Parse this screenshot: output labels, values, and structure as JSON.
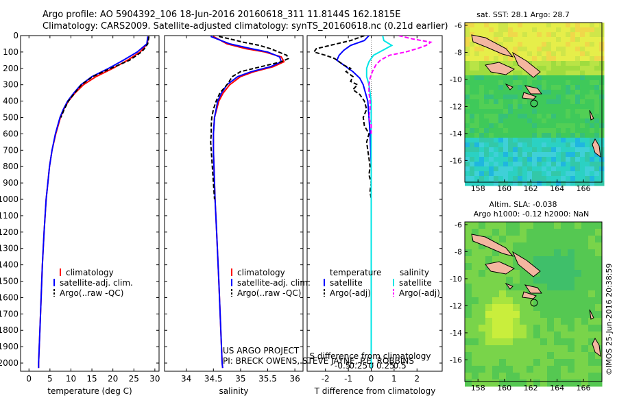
{
  "header": {
    "line1": "Argo profile: AO 5904392_106 18-Jun-2016 20160618_311 11.8144S 162.1815E",
    "line2": "Climatology: CARS2009. Satellite-adjusted climatology: synTS_20160618.nc (0.21d earlier)"
  },
  "colors": {
    "climatology": "#ff0000",
    "satellite": "#0000ff",
    "argo": "#000000",
    "satellite_salinity": "#00e5e5",
    "argo_salinity": "#ff00ff"
  },
  "chart_data": [
    {
      "id": "temperature",
      "type": "line",
      "xlabel": "temperature (deg C)",
      "xlim": [
        -2,
        31
      ],
      "xticks": [
        0,
        5,
        10,
        15,
        20,
        25,
        30
      ],
      "xtick_labels": [
        "0",
        "5",
        "10",
        "15",
        "20",
        "25",
        "30"
      ],
      "ylim": [
        2050,
        0
      ],
      "yticks": [
        0,
        100,
        200,
        300,
        400,
        500,
        600,
        700,
        800,
        900,
        1000,
        1100,
        1200,
        1300,
        1400,
        1500,
        1600,
        1700,
        1800,
        1900,
        2000
      ],
      "ytick_labels": [
        "0",
        "100",
        "200",
        "300",
        "400",
        "500",
        "600",
        "700",
        "800",
        "900",
        "1000",
        "1100",
        "1200",
        "1300",
        "1400",
        "1500",
        "1600",
        "1700",
        "1800",
        "1900",
        "2000"
      ],
      "legend": [
        "climatology",
        "satellite-adj. clim.",
        "Argo(..raw -QC)"
      ],
      "series": [
        {
          "name": "climatology",
          "color": "#ff0000",
          "dash": "",
          "depth": [
            5,
            50,
            100,
            150,
            200,
            250,
            300,
            350,
            400,
            450,
            500,
            600,
            700,
            800,
            900,
            1000,
            1200,
            1400,
            1600,
            1800,
            2000,
            2030
          ],
          "values": [
            28.4,
            28.2,
            26.5,
            23.5,
            20.0,
            16.0,
            13.0,
            11.0,
            9.4,
            8.3,
            7.5,
            6.4,
            5.5,
            4.9,
            4.5,
            4.1,
            3.6,
            3.2,
            2.9,
            2.6,
            2.3,
            2.3
          ]
        },
        {
          "name": "satellite-adj. clim.",
          "color": "#0000ff",
          "dash": "",
          "depth": [
            5,
            50,
            100,
            150,
            200,
            250,
            300,
            350,
            400,
            450,
            500,
            600,
            700,
            800,
            900,
            1000,
            1200,
            1400,
            1600,
            1800,
            2000,
            2030
          ],
          "values": [
            28.3,
            28.1,
            25.8,
            22.5,
            19.0,
            15.0,
            12.4,
            10.7,
            9.2,
            8.2,
            7.4,
            6.3,
            5.5,
            4.9,
            4.5,
            4.1,
            3.6,
            3.2,
            2.9,
            2.6,
            2.3,
            2.3
          ]
        },
        {
          "name": "Argo(..raw -QC)",
          "color": "#000000",
          "dash": "6,3",
          "depth": [
            5,
            50,
            80,
            100,
            150,
            200,
            250,
            300,
            350,
            400,
            450,
            500
          ],
          "values": [
            28.6,
            28.3,
            27.5,
            26.8,
            24.0,
            19.5,
            15.2,
            12.5,
            10.9,
            9.4,
            8.4,
            7.6
          ]
        }
      ]
    },
    {
      "id": "salinity",
      "type": "line",
      "xlabel": "salinity",
      "xlim": [
        33.6,
        36.15
      ],
      "xticks": [
        34,
        34.5,
        35,
        35.5,
        36
      ],
      "xtick_labels": [
        "34",
        "34.5",
        "35",
        "35.5",
        "36"
      ],
      "ylim": [
        2050,
        0
      ],
      "legend": [
        "climatology",
        "satellite-adj. clim.",
        "Argo(..raw -QC)"
      ],
      "series": [
        {
          "name": "climatology",
          "color": "#ff0000",
          "dash": "",
          "depth": [
            5,
            50,
            80,
            100,
            130,
            160,
            190,
            220,
            250,
            300,
            350,
            400,
            500,
            600,
            700,
            800,
            1000,
            1200,
            1500,
            2000,
            2030
          ],
          "values": [
            34.5,
            34.75,
            35.1,
            35.45,
            35.75,
            35.8,
            35.6,
            35.25,
            35.0,
            34.8,
            34.68,
            34.6,
            34.52,
            34.5,
            34.5,
            34.51,
            34.53,
            34.56,
            34.6,
            34.66,
            34.67
          ]
        },
        {
          "name": "satellite-adj. clim.",
          "color": "#0000ff",
          "dash": "",
          "depth": [
            5,
            50,
            80,
            100,
            130,
            160,
            190,
            220,
            250,
            300,
            350,
            400,
            500,
            600,
            700,
            800,
            1000,
            1200,
            1500,
            2000,
            2030
          ],
          "values": [
            34.45,
            34.8,
            35.2,
            35.5,
            35.72,
            35.75,
            35.55,
            35.2,
            34.95,
            34.75,
            34.65,
            34.58,
            34.52,
            34.5,
            34.5,
            34.51,
            34.53,
            34.56,
            34.6,
            34.66,
            34.67
          ]
        },
        {
          "name": "Argo(..raw -QC)",
          "color": "#000000",
          "dash": "6,3",
          "depth": [
            5,
            20,
            40,
            60,
            80,
            100,
            120,
            140,
            160,
            180,
            200,
            220,
            250,
            300,
            350,
            400,
            450,
            500,
            550,
            600,
            650,
            700,
            750,
            800,
            850,
            900,
            950,
            1000
          ],
          "values": [
            34.6,
            34.8,
            35.05,
            35.35,
            35.55,
            35.7,
            35.85,
            35.88,
            35.75,
            35.5,
            35.25,
            35.0,
            34.85,
            34.75,
            34.62,
            34.55,
            34.5,
            34.47,
            34.46,
            34.46,
            34.45,
            34.46,
            34.47,
            34.48,
            34.49,
            34.5,
            34.51,
            34.52
          ]
        }
      ]
    },
    {
      "id": "difference",
      "type": "line",
      "xlabel": "T difference from climatology",
      "top_label": "S difference from climatology",
      "xlim": [
        -2.8,
        3.1
      ],
      "xticks": [
        -2,
        -1,
        0,
        1,
        2
      ],
      "xtick_labels": [
        "-2",
        "-1",
        "0",
        "1",
        "2"
      ],
      "s_xticks_at": [
        -1.25,
        -0.625,
        0,
        0.625,
        1.25
      ],
      "s_xtick_labels": [
        "-0.5",
        "-0.25",
        "0",
        "0.25",
        "0.5"
      ],
      "ylim": [
        2050,
        0
      ],
      "legend_titles": [
        "temperature",
        "salinity"
      ],
      "legend": [
        "satellite",
        "Argo(-adj)",
        "satellite",
        "Argo(-adj)"
      ],
      "series": [
        {
          "name": "temperature satellite",
          "color": "#0000ff",
          "dash": "",
          "depth": [
            0,
            30,
            60,
            90,
            120,
            150,
            180,
            220,
            260,
            300,
            350,
            400,
            500,
            600,
            800,
            1000,
            1500,
            2030
          ],
          "values": [
            -0.1,
            -0.3,
            -0.9,
            -1.2,
            -1.4,
            -1.5,
            -1.2,
            -0.8,
            -0.5,
            -0.35,
            -0.25,
            -0.15,
            -0.1,
            -0.05,
            0,
            0,
            0,
            0
          ]
        },
        {
          "name": "temperature Argo(-adj)",
          "color": "#000000",
          "dash": "6,3",
          "depth": [
            0,
            30,
            60,
            80,
            100,
            120,
            140,
            160,
            180,
            200,
            220,
            250,
            280,
            300,
            330,
            360,
            400,
            450,
            500,
            550,
            600,
            650,
            700,
            750,
            800,
            850,
            900,
            950,
            1000
          ],
          "values": [
            -0.3,
            -0.9,
            -1.8,
            -2.4,
            -2.5,
            -2.0,
            -1.6,
            -1.4,
            -1.2,
            -0.9,
            -1.1,
            -0.8,
            -0.9,
            -0.6,
            -0.8,
            -0.5,
            -0.3,
            -0.2,
            -0.35,
            -0.3,
            -0.1,
            -0.2,
            -0.15,
            -0.1,
            -0.05,
            -0.1,
            0,
            -0.05,
            0
          ]
        },
        {
          "name": "salinity satellite",
          "color": "#00e5e5",
          "dash": "",
          "depth": [
            0,
            30,
            60,
            90,
            120,
            160,
            200,
            250,
            300,
            400,
            500,
            600,
            700,
            800,
            1000,
            1500,
            2030
          ],
          "values": [
            0.5,
            0.55,
            0.9,
            0.5,
            0.1,
            -0.1,
            -0.2,
            -0.2,
            -0.1,
            0,
            0,
            0,
            0,
            0,
            0,
            0,
            0
          ]
        },
        {
          "name": "salinity Argo(-adj)",
          "color": "#ff00ff",
          "dash": "6,3",
          "depth": [
            0,
            20,
            40,
            60,
            80,
            100,
            120,
            150,
            180,
            220,
            260,
            300,
            350,
            400,
            450,
            500,
            550,
            600
          ],
          "values": [
            1.2,
            1.8,
            2.6,
            2.4,
            2.0,
            1.5,
            0.8,
            0.4,
            0.2,
            0.05,
            -0.05,
            -0.1,
            -0.1,
            -0.05,
            -0.05,
            -0.1,
            0,
            0
          ]
        }
      ]
    }
  ],
  "maps": {
    "sst": {
      "title": "sat. SST: 28.1  Argo: 28.7",
      "lat_ticks": [
        "-6",
        "-8",
        "-10",
        "-12",
        "-14",
        "-16"
      ],
      "lon_ticks": [
        "158",
        "160",
        "162",
        "164",
        "166"
      ]
    },
    "sla": {
      "title_line1": "Altim. SLA: -0.038",
      "title_line2": "Argo h1000: -0.12 h2000: NaN",
      "lat_ticks": [
        "-6",
        "-8",
        "-10",
        "-12",
        "-14",
        "-16"
      ],
      "lon_ticks": [
        "158",
        "160",
        "162",
        "164",
        "166"
      ]
    }
  },
  "credits": {
    "project": "US ARGO PROJECT",
    "pi": "PI: BRECK OWENS, STEVE JAYNE, P.E. ROBBINS",
    "stamp": "©IMOS 25-Jun-2016 20:38:59"
  }
}
